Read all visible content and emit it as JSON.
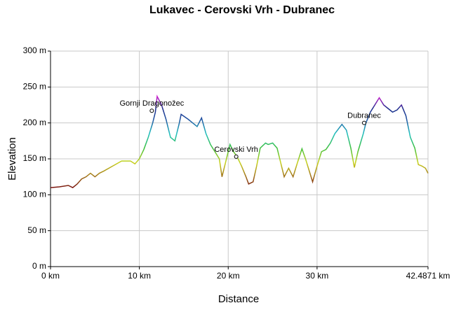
{
  "chart_data": {
    "type": "line",
    "title": "Lukavec - Cerovski Vrh - Dubranec",
    "xlabel": "Distance",
    "ylabel": "Elevation",
    "x": [
      0,
      1,
      2,
      2.5,
      3,
      3.5,
      4,
      4.5,
      5,
      5.5,
      6,
      7,
      8,
      9,
      9.5,
      10,
      10.5,
      11,
      11.5,
      11.8,
      12,
      12.5,
      13,
      13.5,
      14,
      14.5,
      14.7,
      15.5,
      16,
      16.5,
      17,
      17.5,
      18,
      18.5,
      19,
      19.3,
      19.7,
      20.2,
      20.6,
      21,
      21.5,
      22,
      22.3,
      22.8,
      23.2,
      23.6,
      24.2,
      24.5,
      25,
      25.5,
      26,
      26.3,
      26.8,
      27.3,
      27.8,
      28.3,
      28.7,
      29.2,
      29.5,
      30,
      30.5,
      31,
      31.5,
      32,
      32.8,
      33.3,
      33.8,
      34.2,
      34.6,
      35.2,
      35.5,
      36,
      36.5,
      37,
      37.5,
      38,
      38.5,
      39,
      39.5,
      40,
      40.5,
      41,
      41.4,
      41.8,
      42.2,
      42.4871
    ],
    "series": [
      {
        "name": "Elevation",
        "values": [
          110,
          111,
          113,
          110,
          115,
          122,
          125,
          130,
          125,
          130,
          133,
          140,
          147,
          147,
          143,
          150,
          163,
          180,
          200,
          215,
          237,
          225,
          205,
          180,
          175,
          200,
          212,
          205,
          200,
          195,
          207,
          185,
          170,
          160,
          150,
          125,
          145,
          170,
          160,
          153,
          140,
          125,
          115,
          118,
          140,
          165,
          172,
          170,
          172,
          165,
          140,
          125,
          137,
          125,
          145,
          164,
          150,
          130,
          118,
          140,
          160,
          163,
          172,
          185,
          198,
          190,
          165,
          138,
          160,
          185,
          200,
          215,
          225,
          235,
          225,
          220,
          215,
          218,
          225,
          210,
          180,
          165,
          142,
          140,
          137,
          130
        ]
      }
    ],
    "colorscale": [
      {
        "value": 110,
        "color": "#7a1410"
      },
      {
        "value": 125,
        "color": "#a0701a"
      },
      {
        "value": 145,
        "color": "#c8d21e"
      },
      {
        "value": 165,
        "color": "#3cbf3c"
      },
      {
        "value": 185,
        "color": "#1fbfbf"
      },
      {
        "value": 205,
        "color": "#1f50a0"
      },
      {
        "value": 220,
        "color": "#1a2a8a"
      },
      {
        "value": 237,
        "color": "#d020d0"
      }
    ],
    "annotations": [
      {
        "text": "Gornji Dragonožec",
        "x": 11.4,
        "y": 217
      },
      {
        "text": "Cerovski Vrh",
        "x": 20.9,
        "y": 153
      },
      {
        "text": "Dubranec",
        "x": 35.3,
        "y": 200
      }
    ],
    "xlim": [
      0,
      42.4871
    ],
    "xticks": [
      {
        "value": 0,
        "label": "0 km"
      },
      {
        "value": 10,
        "label": "10 km"
      },
      {
        "value": 20,
        "label": "20 km"
      },
      {
        "value": 30,
        "label": "30 km"
      },
      {
        "value": 42.4871,
        "label": "42.4871 km"
      }
    ],
    "ylim": [
      0,
      300
    ],
    "yticks": [
      {
        "value": 0,
        "label": "0 m"
      },
      {
        "value": 50,
        "label": "50 m"
      },
      {
        "value": 100,
        "label": "100 m"
      },
      {
        "value": 150,
        "label": "150 m"
      },
      {
        "value": 200,
        "label": "200 m"
      },
      {
        "value": 250,
        "label": "250 m"
      },
      {
        "value": 300,
        "label": "300 m"
      }
    ],
    "grid": true
  }
}
